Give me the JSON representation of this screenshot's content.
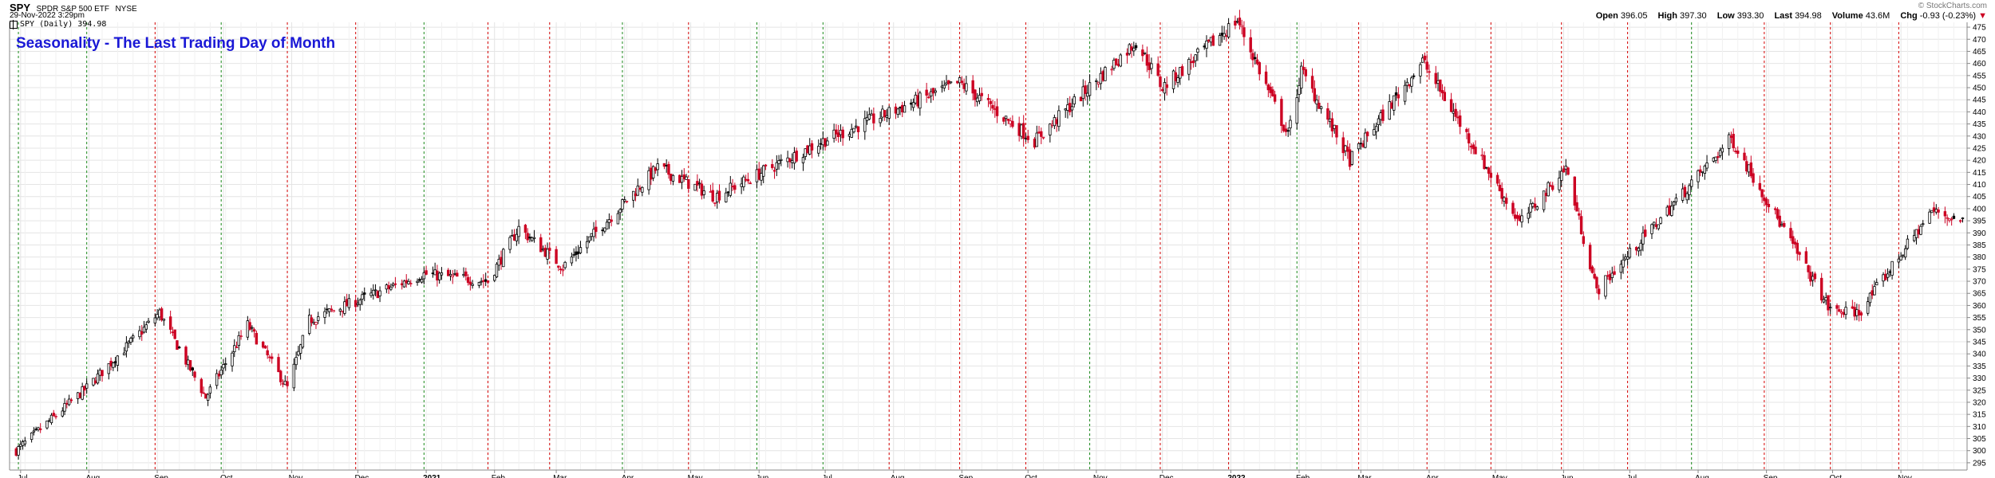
{
  "header": {
    "symbol": "SPY",
    "name": "SPDR S&P 500 ETF",
    "exchange": "NYSE",
    "date": "29-Nov-2022 3:29pm",
    "legend": "SPY (Daily) 394.98",
    "annotation": "Seasonality - The Last Trading Day of Month",
    "copyright": "© StockCharts.com"
  },
  "quote": {
    "open_label": "Open",
    "open": "396.05",
    "high_label": "High",
    "high": "397.30",
    "low_label": "Low",
    "low": "393.30",
    "last_label": "Last",
    "last": "394.98",
    "volume_label": "Volume",
    "volume": "43.6M",
    "chg_label": "Chg",
    "chg": "-0.93 (-0.23%)",
    "chg_arrow": "▼"
  },
  "colors": {
    "up": "#000000",
    "down": "#cc0022",
    "up_marker": "#1a8a1a",
    "down_marker": "#d40000",
    "grid": "#e4e4e4",
    "annotation": "#1a18d6"
  },
  "chart_data": {
    "type": "candlestick",
    "series_name": "SPY (Daily)",
    "ylim": [
      292,
      477
    ],
    "y_ticks": [
      295,
      300,
      305,
      310,
      315,
      320,
      325,
      330,
      335,
      340,
      345,
      350,
      355,
      360,
      365,
      370,
      375,
      380,
      385,
      390,
      395,
      400,
      405,
      410,
      415,
      420,
      425,
      430,
      435,
      440,
      445,
      450,
      455,
      460,
      465,
      470,
      475
    ],
    "x_months": [
      "Jul",
      "Aug",
      "Sep",
      "Oct",
      "Nov",
      "Dec",
      "2021",
      "Feb",
      "Mar",
      "Apr",
      "May",
      "Jun",
      "Jul",
      "Aug",
      "Sep",
      "Oct",
      "Nov",
      "Dec",
      "2022",
      "Feb",
      "Mar",
      "Apr",
      "May",
      "Jun",
      "Jul",
      "Aug",
      "Sep",
      "Oct",
      "Nov"
    ],
    "month_end_markers": [
      {
        "month": "Jun 2020",
        "direction": "up"
      },
      {
        "month": "Jul 2020",
        "direction": "up"
      },
      {
        "month": "Aug 2020",
        "direction": "down"
      },
      {
        "month": "Sep 2020",
        "direction": "up"
      },
      {
        "month": "Oct 2020",
        "direction": "down"
      },
      {
        "month": "Nov 2020",
        "direction": "down"
      },
      {
        "month": "Dec 2020",
        "direction": "up"
      },
      {
        "month": "Jan 2021",
        "direction": "down"
      },
      {
        "month": "Feb 2021",
        "direction": "down"
      },
      {
        "month": "Mar 2021",
        "direction": "up"
      },
      {
        "month": "Apr 2021",
        "direction": "down"
      },
      {
        "month": "May 2021",
        "direction": "up"
      },
      {
        "month": "Jun 2021",
        "direction": "up"
      },
      {
        "month": "Jul 2021",
        "direction": "down"
      },
      {
        "month": "Aug 2021",
        "direction": "down"
      },
      {
        "month": "Sep 2021",
        "direction": "down"
      },
      {
        "month": "Oct 2021",
        "direction": "up"
      },
      {
        "month": "Nov 2021",
        "direction": "down"
      },
      {
        "month": "Dec 2021",
        "direction": "down"
      },
      {
        "month": "Jan 2022",
        "direction": "up"
      },
      {
        "month": "Feb 2022",
        "direction": "down"
      },
      {
        "month": "Mar 2022",
        "direction": "down"
      },
      {
        "month": "Apr 2022",
        "direction": "down"
      },
      {
        "month": "May 2022",
        "direction": "down"
      },
      {
        "month": "Jun 2022",
        "direction": "down"
      },
      {
        "month": "Jul 2022",
        "direction": "up"
      },
      {
        "month": "Aug 2022",
        "direction": "down"
      },
      {
        "month": "Sep 2022",
        "direction": "down"
      },
      {
        "month": "Oct 2022",
        "direction": "down"
      }
    ],
    "anchors": [
      {
        "date": "2020-06-29",
        "close": 300
      },
      {
        "date": "2020-07-31",
        "close": 326
      },
      {
        "date": "2020-09-02",
        "close": 357
      },
      {
        "date": "2020-09-23",
        "close": 322
      },
      {
        "date": "2020-10-12",
        "close": 352
      },
      {
        "date": "2020-10-30",
        "close": 326
      },
      {
        "date": "2020-11-09",
        "close": 354
      },
      {
        "date": "2020-12-31",
        "close": 373
      },
      {
        "date": "2021-01-29",
        "close": 370
      },
      {
        "date": "2021-02-12",
        "close": 392
      },
      {
        "date": "2021-03-04",
        "close": 376
      },
      {
        "date": "2021-04-16",
        "close": 417
      },
      {
        "date": "2021-05-12",
        "close": 405
      },
      {
        "date": "2021-06-30",
        "close": 428
      },
      {
        "date": "2021-08-31",
        "close": 452
      },
      {
        "date": "2021-10-04",
        "close": 428
      },
      {
        "date": "2021-11-19",
        "close": 469
      },
      {
        "date": "2021-12-01",
        "close": 450
      },
      {
        "date": "2022-01-04",
        "close": 478
      },
      {
        "date": "2022-01-27",
        "close": 430
      },
      {
        "date": "2022-02-02",
        "close": 457
      },
      {
        "date": "2022-02-24",
        "close": 420
      },
      {
        "date": "2022-03-29",
        "close": 461
      },
      {
        "date": "2022-05-12",
        "close": 394
      },
      {
        "date": "2022-06-02",
        "close": 417
      },
      {
        "date": "2022-06-16",
        "close": 366
      },
      {
        "date": "2022-08-16",
        "close": 429
      },
      {
        "date": "2022-09-30",
        "close": 358
      },
      {
        "date": "2022-10-13",
        "close": 357
      },
      {
        "date": "2022-11-15",
        "close": 399
      },
      {
        "date": "2022-11-29",
        "close": 395
      }
    ]
  }
}
